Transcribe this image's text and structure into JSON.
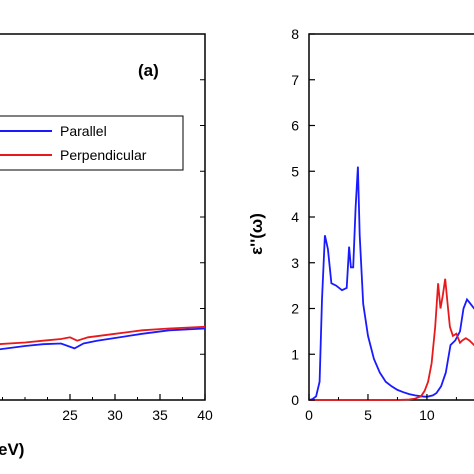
{
  "chart_data": [
    {
      "type": "line",
      "panel_label": "(a)",
      "xlabel": "eV)",
      "xlim": [
        17,
        40
      ],
      "x_ticks": [
        "25",
        "30",
        "35",
        "40"
      ],
      "legend": {
        "placement": "center-right",
        "entries": [
          "Parallel",
          "Perpendicular"
        ]
      },
      "series": [
        {
          "name": "Parallel",
          "color": "#1a1aff",
          "x": [
            17,
            20,
            22,
            24,
            25.5,
            26.5,
            28,
            30,
            33,
            36,
            40
          ],
          "y": [
            -0.05,
            0.05,
            0.1,
            0.12,
            -0.02,
            0.12,
            0.2,
            0.28,
            0.4,
            0.5,
            0.55
          ]
        },
        {
          "name": "Perpendicular",
          "color": "#e8191c",
          "x": [
            17,
            20,
            22,
            24,
            25,
            25.8,
            27,
            30,
            33,
            36,
            40
          ],
          "y": [
            0.1,
            0.15,
            0.2,
            0.25,
            0.3,
            0.2,
            0.3,
            0.4,
            0.5,
            0.55,
            0.6
          ]
        }
      ]
    },
    {
      "type": "line",
      "ylabel": "ε''(ω)",
      "xlim": [
        0,
        14.5
      ],
      "ylim": [
        0,
        8
      ],
      "x_ticks": [
        "0",
        "5",
        "10"
      ],
      "y_ticks": [
        "0",
        "1",
        "2",
        "3",
        "4",
        "5",
        "6",
        "7",
        "8"
      ],
      "series": [
        {
          "color": "#1a1aff",
          "x": [
            0,
            0.3,
            0.6,
            0.9,
            1.1,
            1.35,
            1.6,
            1.9,
            2.3,
            2.8,
            3.2,
            3.4,
            3.55,
            3.75,
            3.95,
            4.15,
            4.3,
            4.6,
            5.0,
            5.5,
            6.0,
            6.5,
            7.0,
            7.5,
            8.0,
            8.5,
            9.0,
            9.5,
            10.0,
            10.5,
            10.8,
            11.2,
            11.6,
            12.0,
            12.4,
            12.8,
            13.1,
            13.4,
            13.7,
            14.0,
            14.5
          ],
          "y": [
            0,
            0.02,
            0.08,
            0.4,
            2.2,
            3.6,
            3.3,
            2.55,
            2.5,
            2.4,
            2.45,
            3.35,
            2.9,
            2.9,
            4.2,
            5.1,
            3.6,
            2.1,
            1.4,
            0.9,
            0.6,
            0.4,
            0.3,
            0.22,
            0.17,
            0.13,
            0.1,
            0.08,
            0.07,
            0.1,
            0.15,
            0.3,
            0.6,
            1.2,
            1.3,
            1.5,
            2.0,
            2.2,
            2.1,
            2.0,
            1.9
          ]
        },
        {
          "color": "#e8191c",
          "x": [
            0,
            7.5,
            8.5,
            9.0,
            9.5,
            9.8,
            10.1,
            10.4,
            10.7,
            10.95,
            11.15,
            11.35,
            11.55,
            11.75,
            11.95,
            12.2,
            12.5,
            12.8,
            13.0,
            13.3,
            13.6,
            14.0,
            14.5
          ],
          "y": [
            0,
            0,
            0.01,
            0.03,
            0.08,
            0.2,
            0.4,
            0.8,
            1.6,
            2.55,
            2.0,
            2.3,
            2.65,
            2.1,
            1.6,
            1.4,
            1.45,
            1.25,
            1.3,
            1.35,
            1.3,
            1.2,
            1.1
          ]
        }
      ]
    }
  ]
}
